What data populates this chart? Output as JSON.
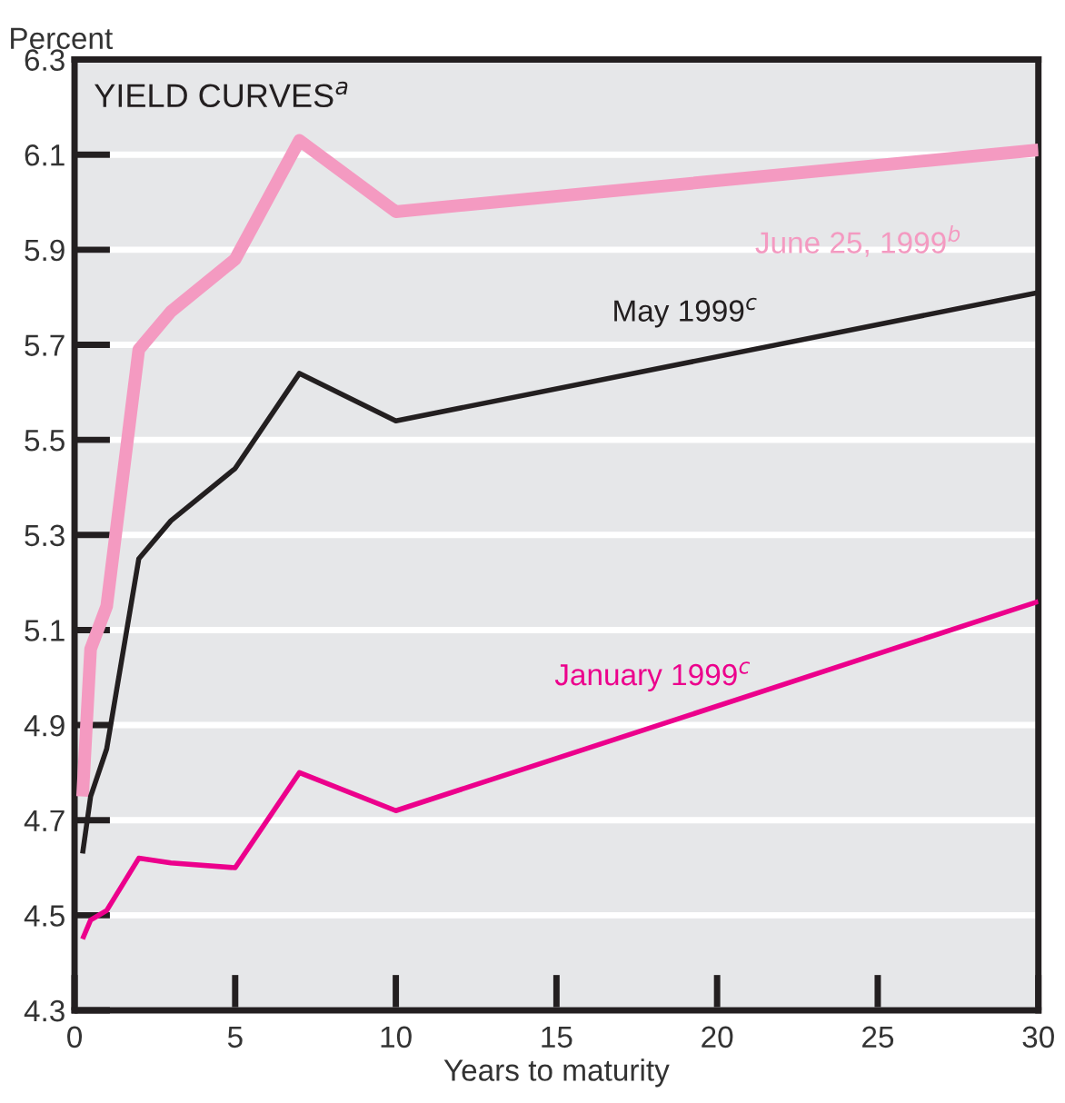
{
  "chart_data": {
    "type": "line",
    "ylabel": "Percent",
    "xlabel": "Years to maturity",
    "annotations": [
      "YIELD CURVES$^{a}$"
    ],
    "xlim": [
      0,
      30
    ],
    "xticks": [
      0,
      5,
      10,
      15,
      20,
      25,
      30
    ],
    "ylim": [
      4.3,
      6.3
    ],
    "yticks": [
      4.3,
      4.5,
      4.7,
      4.9,
      5.1,
      5.3,
      5.5,
      5.7,
      5.9,
      6.1,
      6.3
    ],
    "grid": "y",
    "legend": false,
    "marker": "none",
    "line_style": "solid",
    "x": [
      0.25,
      0.5,
      1,
      2,
      3,
      5,
      7,
      10,
      30
    ],
    "series": [
      {
        "name": "June 25, 1999$^{b}$",
        "color": "#f49ac1",
        "values": [
          4.75,
          5.06,
          5.15,
          5.69,
          5.77,
          5.88,
          6.13,
          5.98,
          6.11
        ]
      },
      {
        "name": "May 1999$^{c}$",
        "color": "#231f20",
        "values": [
          4.63,
          4.75,
          4.85,
          5.25,
          5.33,
          5.44,
          5.64,
          5.54,
          5.81
        ]
      },
      {
        "name": "January 1999$^{c}$",
        "color": "#ec008c",
        "values": [
          4.45,
          4.49,
          4.51,
          4.62,
          4.61,
          4.6,
          4.8,
          4.72,
          5.16
        ]
      }
    ]
  }
}
